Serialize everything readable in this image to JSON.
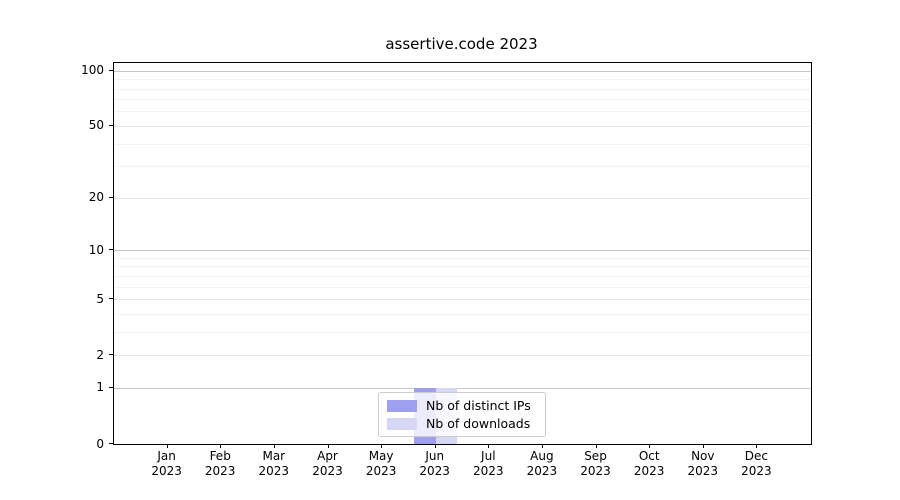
{
  "figure": {
    "title": "assertive.code 2023"
  },
  "legend": {
    "items": [
      {
        "label": "Nb of distinct IPs",
        "color": "#9f9ff0"
      },
      {
        "label": "Nb of downloads",
        "color": "#d6d6f5"
      }
    ]
  },
  "axes": {
    "y_tick_labels": [
      "0",
      "1",
      "2",
      "5",
      "10",
      "20",
      "50",
      "100"
    ],
    "x_ticks": [
      {
        "month": "Jan",
        "year": "2023"
      },
      {
        "month": "Feb",
        "year": "2023"
      },
      {
        "month": "Mar",
        "year": "2023"
      },
      {
        "month": "Apr",
        "year": "2023"
      },
      {
        "month": "May",
        "year": "2023"
      },
      {
        "month": "Jun",
        "year": "2023"
      },
      {
        "month": "Jul",
        "year": "2023"
      },
      {
        "month": "Aug",
        "year": "2023"
      },
      {
        "month": "Sep",
        "year": "2023"
      },
      {
        "month": "Oct",
        "year": "2023"
      },
      {
        "month": "Nov",
        "year": "2023"
      },
      {
        "month": "Dec",
        "year": "2023"
      }
    ]
  },
  "chart_data": {
    "type": "bar",
    "title": "assertive.code 2023",
    "categories": [
      "Jan 2023",
      "Feb 2023",
      "Mar 2023",
      "Apr 2023",
      "May 2023",
      "Jun 2023",
      "Jul 2023",
      "Aug 2023",
      "Sep 2023",
      "Oct 2023",
      "Nov 2023",
      "Dec 2023"
    ],
    "series": [
      {
        "name": "Nb of distinct IPs",
        "color": "#9f9ff0",
        "values": [
          0,
          0,
          0,
          0,
          0,
          1,
          0,
          0,
          0,
          0,
          0,
          0
        ]
      },
      {
        "name": "Nb of downloads",
        "color": "#d6d6f5",
        "values": [
          0,
          0,
          0,
          0,
          0,
          1,
          0,
          0,
          0,
          0,
          0,
          0
        ]
      }
    ],
    "xlabel": "",
    "ylabel": "",
    "yscale": "log10(1+y)",
    "ylim": [
      0,
      110
    ],
    "y_major_ticks": [
      0,
      1,
      2,
      5,
      10,
      20,
      50,
      100
    ],
    "y_decade_ticks": [
      1,
      10,
      100
    ],
    "y_minor_ticks": [
      3,
      4,
      6,
      7,
      8,
      9,
      30,
      40,
      60,
      70,
      80,
      90
    ],
    "grid": "horizontal",
    "legend_position": "lower center"
  }
}
